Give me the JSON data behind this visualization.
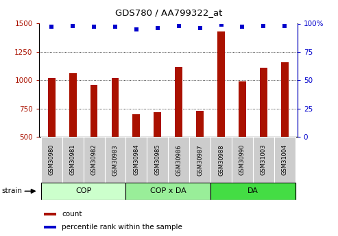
{
  "title": "GDS780 / AA799322_at",
  "categories": [
    "GSM30980",
    "GSM30981",
    "GSM30982",
    "GSM30983",
    "GSM30984",
    "GSM30985",
    "GSM30986",
    "GSM30987",
    "GSM30988",
    "GSM30990",
    "GSM31003",
    "GSM31004"
  ],
  "counts": [
    1020,
    1060,
    960,
    1020,
    700,
    715,
    1115,
    730,
    1430,
    990,
    1110,
    1160
  ],
  "percentiles": [
    97,
    98,
    97,
    97,
    95,
    96,
    98,
    96,
    99,
    97,
    98,
    98
  ],
  "ylim_left": [
    500,
    1500
  ],
  "ylim_right": [
    0,
    100
  ],
  "yticks_left": [
    500,
    750,
    1000,
    1250,
    1500
  ],
  "yticks_right": [
    0,
    25,
    50,
    75,
    100
  ],
  "ytick_right_labels": [
    "0",
    "25",
    "50",
    "75",
    "100%"
  ],
  "groups": [
    {
      "label": "COP",
      "start": 0,
      "end": 4,
      "color": "#ccffcc"
    },
    {
      "label": "COP x DA",
      "start": 4,
      "end": 8,
      "color": "#99ee99"
    },
    {
      "label": "DA",
      "start": 8,
      "end": 12,
      "color": "#44dd44"
    }
  ],
  "bar_color": "#aa1100",
  "dot_color": "#0000cc",
  "label_bg_color": "#cccccc",
  "strain_label": "strain",
  "legend_count": "count",
  "legend_percentile": "percentile rank within the sample",
  "bar_width": 0.35
}
